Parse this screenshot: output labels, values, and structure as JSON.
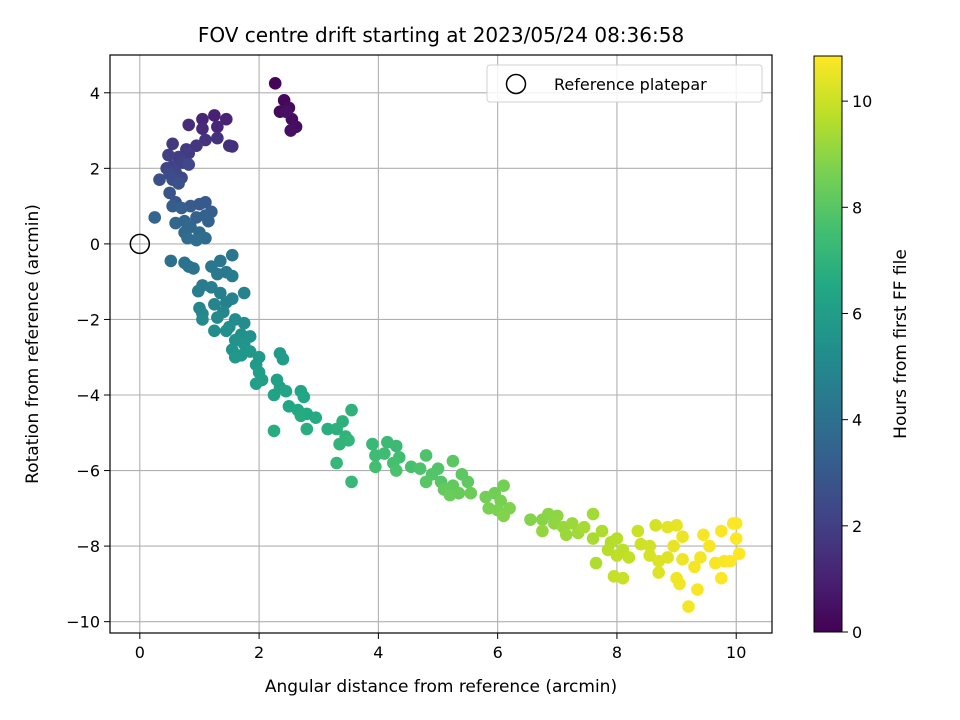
{
  "chart_data": {
    "type": "scatter",
    "title": "FOV centre drift starting at 2023/05/24 08:36:58",
    "xlabel": "Angular distance from reference (arcmin)",
    "ylabel": "Rotation from reference (arcmin)",
    "xlim": [
      -0.5,
      10.6
    ],
    "ylim": [
      -10.3,
      5.0
    ],
    "xticks": [
      0,
      2,
      4,
      6,
      8,
      10
    ],
    "yticks": [
      -10,
      -8,
      -6,
      -4,
      -2,
      0,
      2,
      4
    ],
    "grid": true,
    "legend": {
      "position": "top-right",
      "entries": [
        "Reference platepar"
      ]
    },
    "reference_point": {
      "x": 0,
      "y": 0
    },
    "colorbar": {
      "label": "Hours from first FF file",
      "colormap": "viridis",
      "range": [
        0,
        10.85
      ],
      "ticks": [
        0,
        2,
        4,
        6,
        8,
        10
      ]
    },
    "points": [
      {
        "x": 2.27,
        "y": 4.25,
        "t": 0.1
      },
      {
        "x": 2.42,
        "y": 3.8,
        "t": 0.2
      },
      {
        "x": 2.35,
        "y": 3.5,
        "t": 0.25
      },
      {
        "x": 2.5,
        "y": 3.6,
        "t": 0.3
      },
      {
        "x": 2.55,
        "y": 3.3,
        "t": 0.35
      },
      {
        "x": 2.62,
        "y": 3.1,
        "t": 0.4
      },
      {
        "x": 2.53,
        "y": 3.0,
        "t": 0.45
      },
      {
        "x": 2.45,
        "y": 3.5,
        "t": 0.5
      },
      {
        "x": 1.25,
        "y": 3.4,
        "t": 1.0
      },
      {
        "x": 1.45,
        "y": 3.3,
        "t": 1.1
      },
      {
        "x": 1.05,
        "y": 3.3,
        "t": 1.15
      },
      {
        "x": 1.3,
        "y": 3.1,
        "t": 1.2
      },
      {
        "x": 1.05,
        "y": 3.05,
        "t": 1.3
      },
      {
        "x": 0.82,
        "y": 3.15,
        "t": 1.35
      },
      {
        "x": 1.5,
        "y": 2.6,
        "t": 1.45
      },
      {
        "x": 1.55,
        "y": 2.58,
        "t": 1.5
      },
      {
        "x": 1.3,
        "y": 2.8,
        "t": 1.55
      },
      {
        "x": 1.1,
        "y": 2.75,
        "t": 1.6
      },
      {
        "x": 0.95,
        "y": 2.6,
        "t": 1.7
      },
      {
        "x": 0.78,
        "y": 2.5,
        "t": 1.75
      },
      {
        "x": 0.55,
        "y": 2.65,
        "t": 1.8
      },
      {
        "x": 0.82,
        "y": 2.4,
        "t": 1.9
      },
      {
        "x": 0.65,
        "y": 2.3,
        "t": 1.95
      },
      {
        "x": 0.48,
        "y": 2.35,
        "t": 2.0
      },
      {
        "x": 0.72,
        "y": 2.15,
        "t": 2.1
      },
      {
        "x": 0.55,
        "y": 2.05,
        "t": 2.15
      },
      {
        "x": 0.45,
        "y": 2.0,
        "t": 2.2
      },
      {
        "x": 0.6,
        "y": 1.9,
        "t": 2.3
      },
      {
        "x": 0.82,
        "y": 2.1,
        "t": 2.35
      },
      {
        "x": 0.7,
        "y": 1.75,
        "t": 2.4
      },
      {
        "x": 0.5,
        "y": 1.85,
        "t": 2.5
      },
      {
        "x": 0.55,
        "y": 1.7,
        "t": 2.55
      },
      {
        "x": 0.33,
        "y": 1.7,
        "t": 2.6
      },
      {
        "x": 0.65,
        "y": 1.6,
        "t": 2.7
      },
      {
        "x": 0.5,
        "y": 1.35,
        "t": 2.8
      },
      {
        "x": 0.6,
        "y": 1.1,
        "t": 2.9
      },
      {
        "x": 1.1,
        "y": 1.1,
        "t": 3.0
      },
      {
        "x": 1.0,
        "y": 1.05,
        "t": 3.05
      },
      {
        "x": 0.85,
        "y": 1.0,
        "t": 3.1
      },
      {
        "x": 0.55,
        "y": 1.0,
        "t": 3.2
      },
      {
        "x": 0.7,
        "y": 0.95,
        "t": 3.25
      },
      {
        "x": 1.2,
        "y": 0.85,
        "t": 3.3
      },
      {
        "x": 1.1,
        "y": 0.75,
        "t": 3.35
      },
      {
        "x": 0.95,
        "y": 0.7,
        "t": 3.4
      },
      {
        "x": 1.15,
        "y": 0.6,
        "t": 3.45
      },
      {
        "x": 0.25,
        "y": 0.7,
        "t": 3.5
      },
      {
        "x": 0.6,
        "y": 0.55,
        "t": 3.55
      },
      {
        "x": 0.75,
        "y": 0.6,
        "t": 3.6
      },
      {
        "x": 0.85,
        "y": 0.45,
        "t": 3.65
      },
      {
        "x": 0.75,
        "y": 0.3,
        "t": 3.7
      },
      {
        "x": 1.0,
        "y": 0.3,
        "t": 3.75
      },
      {
        "x": 0.8,
        "y": 0.15,
        "t": 3.8
      },
      {
        "x": 1.1,
        "y": 0.15,
        "t": 3.85
      },
      {
        "x": 0.95,
        "y": 0.1,
        "t": 3.9
      },
      {
        "x": 0.52,
        "y": -0.45,
        "t": 4.0
      },
      {
        "x": 0.75,
        "y": -0.5,
        "t": 4.05
      },
      {
        "x": 0.82,
        "y": -0.6,
        "t": 4.1
      },
      {
        "x": 0.9,
        "y": -0.65,
        "t": 4.15
      },
      {
        "x": 1.55,
        "y": -0.3,
        "t": 4.2
      },
      {
        "x": 1.35,
        "y": -0.45,
        "t": 4.25
      },
      {
        "x": 1.2,
        "y": -0.6,
        "t": 4.3
      },
      {
        "x": 1.45,
        "y": -0.75,
        "t": 4.35
      },
      {
        "x": 1.3,
        "y": -0.8,
        "t": 4.4
      },
      {
        "x": 1.55,
        "y": -0.85,
        "t": 4.45
      },
      {
        "x": 1.05,
        "y": -1.1,
        "t": 4.5
      },
      {
        "x": 0.98,
        "y": -1.25,
        "t": 4.55
      },
      {
        "x": 1.2,
        "y": -1.15,
        "t": 4.6
      },
      {
        "x": 1.35,
        "y": -1.3,
        "t": 4.65
      },
      {
        "x": 1.55,
        "y": -1.45,
        "t": 4.7
      },
      {
        "x": 1.45,
        "y": -1.55,
        "t": 4.75
      },
      {
        "x": 1.75,
        "y": -1.3,
        "t": 4.8
      },
      {
        "x": 1.25,
        "y": -1.6,
        "t": 4.85
      },
      {
        "x": 1.0,
        "y": -1.7,
        "t": 4.9
      },
      {
        "x": 1.05,
        "y": -1.85,
        "t": 4.95
      },
      {
        "x": 1.4,
        "y": -1.8,
        "t": 5.0
      },
      {
        "x": 1.3,
        "y": -1.95,
        "t": 5.05
      },
      {
        "x": 1.05,
        "y": -2.0,
        "t": 5.1
      },
      {
        "x": 1.6,
        "y": -2.0,
        "t": 5.15
      },
      {
        "x": 1.75,
        "y": -2.1,
        "t": 5.2
      },
      {
        "x": 1.5,
        "y": -2.2,
        "t": 5.25
      },
      {
        "x": 1.25,
        "y": -2.3,
        "t": 5.3
      },
      {
        "x": 1.45,
        "y": -2.3,
        "t": 5.35
      },
      {
        "x": 1.7,
        "y": -2.4,
        "t": 5.4
      },
      {
        "x": 1.85,
        "y": -2.45,
        "t": 5.45
      },
      {
        "x": 1.6,
        "y": -2.55,
        "t": 5.5
      },
      {
        "x": 1.75,
        "y": -2.65,
        "t": 5.55
      },
      {
        "x": 1.55,
        "y": -2.8,
        "t": 5.6
      },
      {
        "x": 1.7,
        "y": -2.95,
        "t": 5.65
      },
      {
        "x": 1.85,
        "y": -2.85,
        "t": 5.7
      },
      {
        "x": 1.6,
        "y": -3.0,
        "t": 5.75
      },
      {
        "x": 2.0,
        "y": -3.0,
        "t": 5.8
      },
      {
        "x": 1.95,
        "y": -3.2,
        "t": 5.85
      },
      {
        "x": 2.35,
        "y": -2.9,
        "t": 5.9
      },
      {
        "x": 2.4,
        "y": -3.05,
        "t": 5.95
      },
      {
        "x": 2.0,
        "y": -3.4,
        "t": 6.0
      },
      {
        "x": 2.05,
        "y": -3.6,
        "t": 6.05
      },
      {
        "x": 1.95,
        "y": -3.7,
        "t": 6.1
      },
      {
        "x": 2.3,
        "y": -3.6,
        "t": 6.15
      },
      {
        "x": 2.35,
        "y": -3.8,
        "t": 6.2
      },
      {
        "x": 2.25,
        "y": -4.0,
        "t": 6.25
      },
      {
        "x": 2.45,
        "y": -3.9,
        "t": 6.3
      },
      {
        "x": 2.7,
        "y": -3.9,
        "t": 6.35
      },
      {
        "x": 2.75,
        "y": -4.05,
        "t": 6.4
      },
      {
        "x": 2.5,
        "y": -4.3,
        "t": 6.45
      },
      {
        "x": 2.65,
        "y": -4.4,
        "t": 6.5
      },
      {
        "x": 2.8,
        "y": -4.5,
        "t": 6.55
      },
      {
        "x": 2.95,
        "y": -4.6,
        "t": 6.6
      },
      {
        "x": 2.7,
        "y": -4.55,
        "t": 6.65
      },
      {
        "x": 2.25,
        "y": -4.95,
        "t": 6.7
      },
      {
        "x": 2.8,
        "y": -4.9,
        "t": 6.75
      },
      {
        "x": 3.15,
        "y": -4.9,
        "t": 6.8
      },
      {
        "x": 3.3,
        "y": -4.9,
        "t": 6.85
      },
      {
        "x": 3.4,
        "y": -4.7,
        "t": 6.9
      },
      {
        "x": 3.55,
        "y": -4.4,
        "t": 6.95
      },
      {
        "x": 3.45,
        "y": -5.1,
        "t": 7.0
      },
      {
        "x": 3.35,
        "y": -5.3,
        "t": 7.05
      },
      {
        "x": 3.5,
        "y": -5.2,
        "t": 7.1
      },
      {
        "x": 3.3,
        "y": -5.8,
        "t": 7.15
      },
      {
        "x": 3.55,
        "y": -6.3,
        "t": 7.2
      },
      {
        "x": 3.9,
        "y": -5.3,
        "t": 7.25
      },
      {
        "x": 4.15,
        "y": -5.25,
        "t": 7.3
      },
      {
        "x": 4.3,
        "y": -5.35,
        "t": 7.35
      },
      {
        "x": 3.95,
        "y": -5.6,
        "t": 7.4
      },
      {
        "x": 4.1,
        "y": -5.55,
        "t": 7.45
      },
      {
        "x": 4.35,
        "y": -5.65,
        "t": 7.5
      },
      {
        "x": 3.95,
        "y": -5.9,
        "t": 7.55
      },
      {
        "x": 4.25,
        "y": -5.8,
        "t": 7.6
      },
      {
        "x": 4.55,
        "y": -5.9,
        "t": 7.65
      },
      {
        "x": 4.3,
        "y": -6.0,
        "t": 7.7
      },
      {
        "x": 4.7,
        "y": -5.95,
        "t": 7.75
      },
      {
        "x": 4.8,
        "y": -5.6,
        "t": 7.8
      },
      {
        "x": 5.0,
        "y": -5.95,
        "t": 7.85
      },
      {
        "x": 4.9,
        "y": -6.1,
        "t": 7.9
      },
      {
        "x": 5.05,
        "y": -6.3,
        "t": 7.95
      },
      {
        "x": 4.8,
        "y": -6.3,
        "t": 8.0
      },
      {
        "x": 5.25,
        "y": -5.75,
        "t": 8.05
      },
      {
        "x": 5.4,
        "y": -6.1,
        "t": 8.1
      },
      {
        "x": 5.5,
        "y": -6.3,
        "t": 8.15
      },
      {
        "x": 5.25,
        "y": -6.4,
        "t": 8.2
      },
      {
        "x": 5.1,
        "y": -6.5,
        "t": 8.25
      },
      {
        "x": 5.35,
        "y": -6.6,
        "t": 8.3
      },
      {
        "x": 5.2,
        "y": -6.65,
        "t": 8.35
      },
      {
        "x": 5.55,
        "y": -6.6,
        "t": 8.4
      },
      {
        "x": 5.95,
        "y": -6.6,
        "t": 8.45
      },
      {
        "x": 5.8,
        "y": -6.7,
        "t": 8.5
      },
      {
        "x": 6.1,
        "y": -6.4,
        "t": 8.55
      },
      {
        "x": 6.05,
        "y": -6.8,
        "t": 8.6
      },
      {
        "x": 5.85,
        "y": -7.0,
        "t": 8.65
      },
      {
        "x": 6.0,
        "y": -7.05,
        "t": 8.7
      },
      {
        "x": 6.2,
        "y": -7.0,
        "t": 8.75
      },
      {
        "x": 6.1,
        "y": -7.2,
        "t": 8.8
      },
      {
        "x": 6.55,
        "y": -7.3,
        "t": 8.85
      },
      {
        "x": 6.75,
        "y": -7.3,
        "t": 8.9
      },
      {
        "x": 6.85,
        "y": -7.15,
        "t": 8.95
      },
      {
        "x": 7.0,
        "y": -7.2,
        "t": 9.0
      },
      {
        "x": 6.95,
        "y": -7.4,
        "t": 9.05
      },
      {
        "x": 6.75,
        "y": -7.6,
        "t": 9.1
      },
      {
        "x": 7.1,
        "y": -7.5,
        "t": 9.15
      },
      {
        "x": 7.25,
        "y": -7.4,
        "t": 9.2
      },
      {
        "x": 7.15,
        "y": -7.7,
        "t": 9.25
      },
      {
        "x": 7.35,
        "y": -7.65,
        "t": 9.3
      },
      {
        "x": 7.6,
        "y": -7.15,
        "t": 9.35
      },
      {
        "x": 7.45,
        "y": -7.5,
        "t": 9.4
      },
      {
        "x": 7.6,
        "y": -7.8,
        "t": 9.45
      },
      {
        "x": 7.75,
        "y": -7.6,
        "t": 9.5
      },
      {
        "x": 7.65,
        "y": -8.45,
        "t": 9.55
      },
      {
        "x": 7.9,
        "y": -7.9,
        "t": 9.6
      },
      {
        "x": 8.0,
        "y": -7.8,
        "t": 9.65
      },
      {
        "x": 7.85,
        "y": -8.1,
        "t": 9.7
      },
      {
        "x": 8.1,
        "y": -8.1,
        "t": 9.75
      },
      {
        "x": 8.0,
        "y": -8.25,
        "t": 9.8
      },
      {
        "x": 8.2,
        "y": -8.3,
        "t": 9.85
      },
      {
        "x": 7.95,
        "y": -8.8,
        "t": 9.9
      },
      {
        "x": 8.1,
        "y": -8.85,
        "t": 9.95
      },
      {
        "x": 8.35,
        "y": -7.6,
        "t": 10.0
      },
      {
        "x": 8.4,
        "y": -7.95,
        "t": 10.05
      },
      {
        "x": 8.55,
        "y": -8.0,
        "t": 10.1
      },
      {
        "x": 8.65,
        "y": -7.45,
        "t": 10.15
      },
      {
        "x": 8.55,
        "y": -8.25,
        "t": 10.2
      },
      {
        "x": 8.7,
        "y": -8.4,
        "t": 10.25
      },
      {
        "x": 8.7,
        "y": -8.7,
        "t": 10.3
      },
      {
        "x": 8.85,
        "y": -8.3,
        "t": 10.35
      },
      {
        "x": 8.85,
        "y": -7.5,
        "t": 10.4
      },
      {
        "x": 9.0,
        "y": -7.45,
        "t": 10.45
      },
      {
        "x": 8.95,
        "y": -8.0,
        "t": 10.5
      },
      {
        "x": 9.1,
        "y": -7.75,
        "t": 10.55
      },
      {
        "x": 9.1,
        "y": -8.35,
        "t": 10.6
      },
      {
        "x": 9.0,
        "y": -8.85,
        "t": 10.65
      },
      {
        "x": 9.05,
        "y": -9.0,
        "t": 10.65
      },
      {
        "x": 9.2,
        "y": -9.6,
        "t": 10.7
      },
      {
        "x": 9.3,
        "y": -8.55,
        "t": 10.7
      },
      {
        "x": 9.4,
        "y": -8.3,
        "t": 10.72
      },
      {
        "x": 9.45,
        "y": -7.7,
        "t": 10.74
      },
      {
        "x": 9.35,
        "y": -9.15,
        "t": 10.75
      },
      {
        "x": 9.55,
        "y": -8.0,
        "t": 10.76
      },
      {
        "x": 9.65,
        "y": -8.45,
        "t": 10.77
      },
      {
        "x": 9.75,
        "y": -7.6,
        "t": 10.78
      },
      {
        "x": 9.8,
        "y": -8.4,
        "t": 10.79
      },
      {
        "x": 9.75,
        "y": -8.85,
        "t": 10.8
      },
      {
        "x": 9.9,
        "y": -8.4,
        "t": 10.81
      },
      {
        "x": 10.0,
        "y": -7.8,
        "t": 10.82
      },
      {
        "x": 10.0,
        "y": -7.4,
        "t": 10.83
      },
      {
        "x": 9.95,
        "y": -7.4,
        "t": 10.84
      },
      {
        "x": 10.05,
        "y": -8.2,
        "t": 10.85
      }
    ]
  }
}
